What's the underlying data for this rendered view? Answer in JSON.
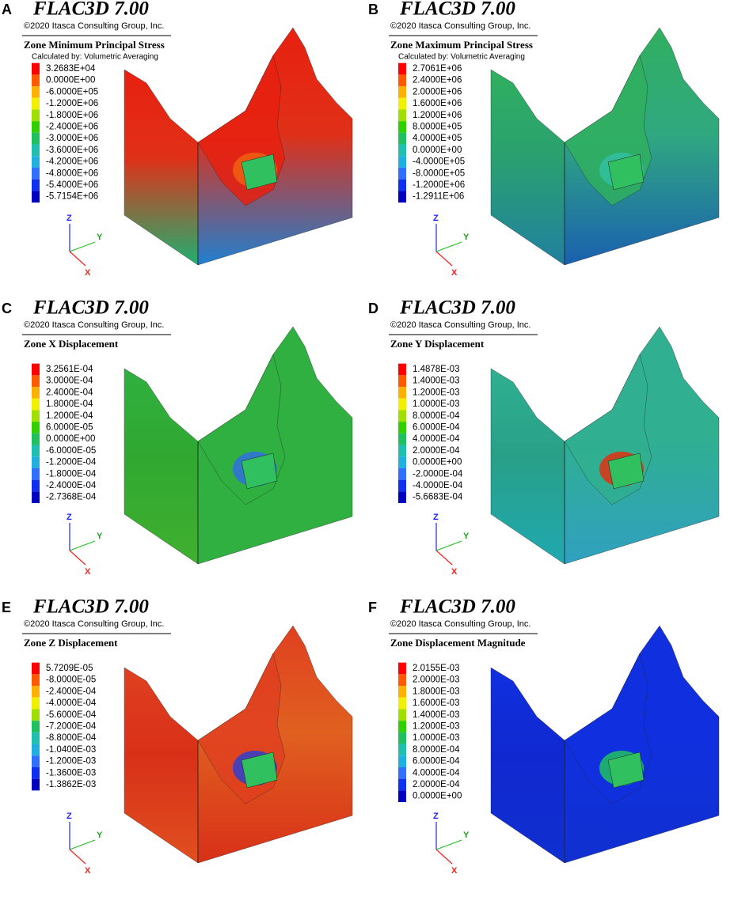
{
  "panels": [
    {
      "letter": "A",
      "title": "FLAC3D 7.00",
      "copyright": "©2020 Itasca Consulting Group, Inc.",
      "legend_title": "Zone Minimum Principal Stress",
      "legend_subtitle": "Calculated by: Volumetric Averaging",
      "legend": [
        "3.2683E+04",
        "0.0000E+00",
        "-6.0000E+05",
        "-1.2000E+06",
        "-1.8000E+06",
        "-2.4000E+06",
        "-3.0000E+06",
        "-3.6000E+06",
        "-4.2000E+06",
        "-4.8000E+06",
        "-5.4000E+06",
        "-5.7154E+06"
      ],
      "axes": [
        "Z",
        "Y",
        "X"
      ]
    },
    {
      "letter": "B",
      "title": "FLAC3D 7.00",
      "copyright": "©2020 Itasca Consulting Group, Inc.",
      "legend_title": "Zone Maximum Principal Stress",
      "legend_subtitle": "Calculated by: Volumetric Averaging",
      "legend": [
        "2.7061E+06",
        "2.4000E+06",
        "2.0000E+06",
        "1.6000E+06",
        "1.2000E+06",
        "8.0000E+05",
        "4.0000E+05",
        "0.0000E+00",
        "-4.0000E+05",
        "-8.0000E+05",
        "-1.2000E+06",
        "-1.2911E+06"
      ],
      "axes": [
        "Z",
        "Y",
        "X"
      ]
    },
    {
      "letter": "C",
      "title": "FLAC3D 7.00",
      "copyright": "©2020 Itasca Consulting Group, Inc.",
      "legend_title": "Zone X Displacement",
      "legend": [
        "3.2561E-04",
        "3.0000E-04",
        "2.4000E-04",
        "1.8000E-04",
        "1.2000E-04",
        "6.0000E-05",
        "0.0000E+00",
        "-6.0000E-05",
        "-1.2000E-04",
        "-1.8000E-04",
        "-2.4000E-04",
        "-2.7368E-04"
      ],
      "axes": [
        "Z",
        "Y",
        "X"
      ]
    },
    {
      "letter": "D",
      "title": "FLAC3D 7.00",
      "copyright": "©2020 Itasca Consulting Group, Inc.",
      "legend_title": "Zone Y Displacement",
      "legend": [
        "1.4878E-03",
        "1.4000E-03",
        "1.2000E-03",
        "1.0000E-03",
        "8.0000E-04",
        "6.0000E-04",
        "4.0000E-04",
        "2.0000E-04",
        "0.0000E+00",
        "-2.0000E-04",
        "-4.0000E-04",
        "-5.6683E-04"
      ],
      "axes": [
        "Z",
        "Y",
        "X"
      ]
    },
    {
      "letter": "E",
      "title": "FLAC3D 7.00",
      "copyright": "©2020 Itasca Consulting Group, Inc.",
      "legend_title": "Zone Z Displacement",
      "legend": [
        "5.7209E-05",
        "-8.0000E-05",
        "-2.4000E-04",
        "-4.0000E-04",
        "-5.6000E-04",
        "-7.2000E-04",
        "-8.8000E-04",
        "-1.0400E-03",
        "-1.2000E-03",
        "-1.3600E-03",
        "-1.3862E-03"
      ],
      "axes": [
        "Z",
        "Y",
        "X"
      ]
    },
    {
      "letter": "F",
      "title": "FLAC3D 7.00",
      "copyright": "©2020 Itasca Consulting Group, Inc.",
      "legend_title": "Zone Displacement Magnitude",
      "legend": [
        "2.0155E-03",
        "2.0000E-03",
        "1.8000E-03",
        "1.6000E-03",
        "1.4000E-03",
        "1.2000E-03",
        "1.0000E-03",
        "8.0000E-04",
        "6.0000E-04",
        "4.0000E-04",
        "2.0000E-04",
        "0.0000E+00"
      ],
      "axes": [
        "Z",
        "Y",
        "X"
      ]
    }
  ]
}
